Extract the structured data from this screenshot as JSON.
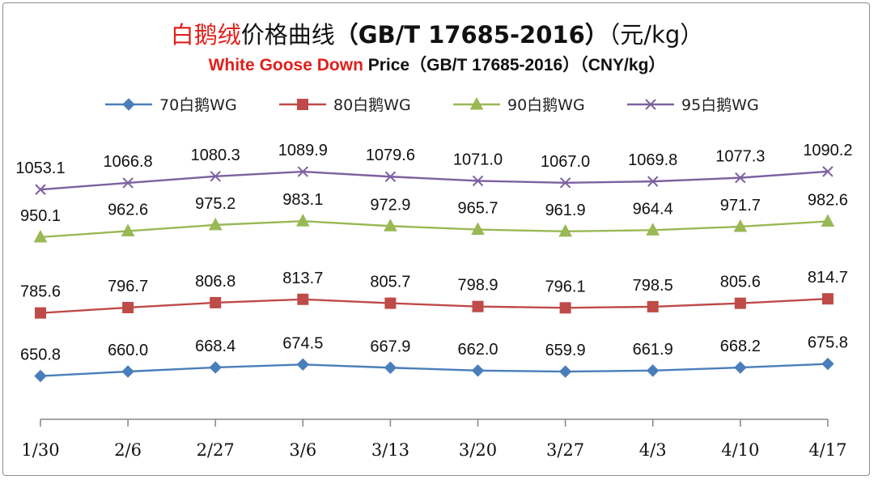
{
  "title": {
    "cn_red": "白鹅绒",
    "cn_rest": "价格曲线",
    "cn_std": "（GB/T 17685-2016）",
    "cn_unit": "（元/kg）",
    "en_red": "White Goose Down",
    "en_rest": " Price（GB/T 17685-2016）（CNY/kg）"
  },
  "chart_data": {
    "type": "line",
    "title": "白鹅绒价格曲线（GB/T 17685-2016）（元/kg） / White Goose Down Price（GB/T 17685-2016）（CNY/kg）",
    "xlabel": "",
    "ylabel": "",
    "categories": [
      "1/30",
      "2/6",
      "2/27",
      "3/6",
      "3/13",
      "3/20",
      "3/27",
      "4/3",
      "4/10",
      "4/17"
    ],
    "legend_position": "top",
    "grid": false,
    "series": [
      {
        "name": "70白鹅WG",
        "color": "#4a7ebb",
        "marker": "diamond",
        "values": [
          650.8,
          660.0,
          668.4,
          674.5,
          667.9,
          662.0,
          659.9,
          661.9,
          668.2,
          675.8
        ],
        "labels": [
          "650.8",
          "660.0",
          "668.4",
          "674.5",
          "667.9",
          "662.0",
          "659.9",
          "661.9",
          "668.2",
          "675.8"
        ]
      },
      {
        "name": "80白鹅WG",
        "color": "#be4b48",
        "marker": "square",
        "values": [
          785.6,
          796.7,
          806.8,
          813.7,
          805.7,
          798.9,
          796.1,
          798.5,
          805.6,
          814.7
        ],
        "labels": [
          "785.6",
          "796.7",
          "806.8",
          "813.7",
          "805.7",
          "798.9",
          "796.1",
          "798.5",
          "805.6",
          "814.7"
        ]
      },
      {
        "name": "90白鹅WG",
        "color": "#98b954",
        "marker": "triangle",
        "values": [
          950.1,
          962.6,
          975.2,
          983.1,
          972.9,
          965.7,
          961.9,
          964.4,
          971.7,
          982.6
        ],
        "labels": [
          "950.1",
          "962.6",
          "975.2",
          "983.1",
          "972.9",
          "965.7",
          "961.9",
          "964.4",
          "971.7",
          "982.6"
        ]
      },
      {
        "name": "95白鹅WG",
        "color": "#7d60a0",
        "marker": "x",
        "values": [
          1053.1,
          1066.8,
          1080.3,
          1089.9,
          1079.6,
          1071.0,
          1067.0,
          1069.8,
          1077.3,
          1090.2
        ],
        "labels": [
          "1053.1",
          "1066.8",
          "1080.3",
          "1089.9",
          "1079.6",
          "1071.0",
          "1067.0",
          "1069.8",
          "1077.3",
          "1090.2"
        ]
      }
    ]
  }
}
